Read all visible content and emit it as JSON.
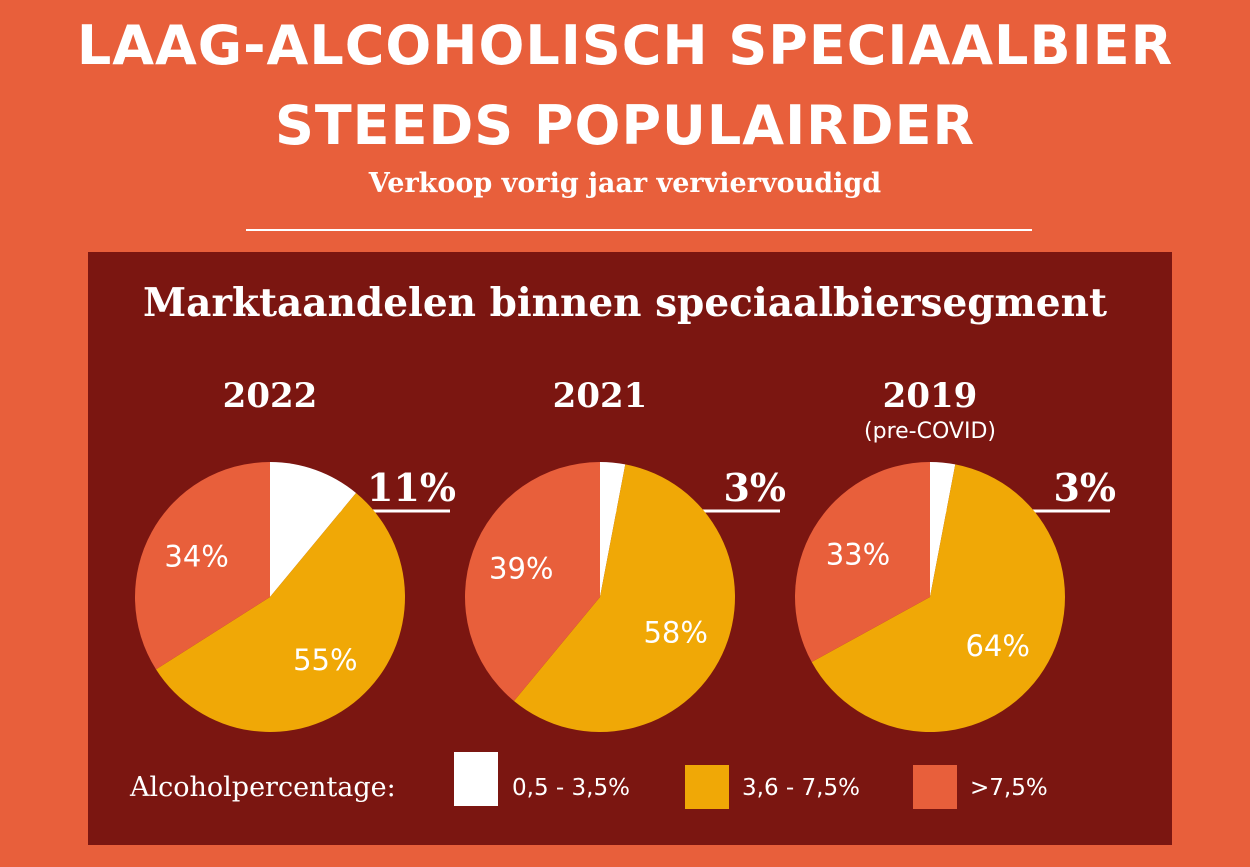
{
  "header": {
    "title_line1": "Laag-alcoholisch speciaalbier",
    "title_line2": "steeds populairder",
    "subtitle": "Verkoop vorig jaar verviervoudigd"
  },
  "chart_data": {
    "type": "pie",
    "title": "Marktaandelen binnen speciaalbiersegment",
    "categories": [
      "0,5 - 3,5%",
      "3,6 - 7,5%",
      ">7,5%"
    ],
    "colors": [
      "#FFFFFF",
      "#F0A806",
      "#E85F3B"
    ],
    "charts": [
      {
        "label": "2022",
        "sublabel": "",
        "values": [
          11,
          55,
          34
        ],
        "value_labels": [
          "11%",
          "55%",
          "34%"
        ]
      },
      {
        "label": "2021",
        "sublabel": "",
        "values": [
          3,
          58,
          39
        ],
        "value_labels": [
          "3%",
          "58%",
          "39%"
        ]
      },
      {
        "label": "2019",
        "sublabel": "(pre-COVID)",
        "values": [
          3,
          64,
          33
        ],
        "value_labels": [
          "3%",
          "64%",
          "33%"
        ]
      }
    ],
    "legend": {
      "title": "Alcoholpercentage:",
      "placement": "bottom"
    }
  },
  "colors": {
    "background": "#E85F3B",
    "panel": "#7B1611"
  }
}
